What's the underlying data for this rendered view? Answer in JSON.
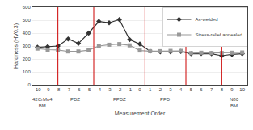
{
  "chart_data": {
    "type": "line",
    "x": [
      -10,
      -9,
      -8,
      -7,
      -6,
      -5,
      -4,
      -3,
      -2,
      -1,
      0,
      1,
      2,
      3,
      4,
      5,
      6,
      7,
      8,
      9,
      10
    ],
    "series": [
      {
        "name": "As-welded",
        "color": "#333333",
        "marker": "diamond",
        "values": [
          290,
          295,
          300,
          355,
          320,
          400,
          490,
          480,
          505,
          350,
          315,
          260,
          255,
          255,
          258,
          240,
          242,
          240,
          225,
          235,
          240
        ]
      },
      {
        "name": "Stress-relief annealed",
        "color": "#999999",
        "marker": "square",
        "values": [
          280,
          272,
          270,
          258,
          258,
          268,
          300,
          310,
          315,
          305,
          265,
          260,
          260,
          262,
          262,
          245,
          248,
          246,
          246,
          248,
          250
        ]
      }
    ],
    "xlabel": "Measurement Order",
    "ylabel": "Hardness (HV0.3)",
    "xlim": [
      -10.5,
      10.5
    ],
    "xticks": [
      -10,
      -9,
      -8,
      -7,
      -6,
      -5,
      -4,
      -3,
      -2,
      -1,
      0,
      1,
      2,
      3,
      4,
      5,
      6,
      7,
      8,
      9,
      10
    ],
    "ylim": [
      0,
      600
    ],
    "yticks": [
      0,
      100,
      200,
      300,
      400,
      500,
      600
    ],
    "grid": "y",
    "legend": "upper right",
    "vlines": {
      "x": [
        -8,
        -4.5,
        0.5,
        4.5,
        8
      ],
      "color": "#cc0000"
    },
    "annotations": [
      {
        "text": "42CrMo4\nBM",
        "x": -9.5
      },
      {
        "text": "PDZ",
        "x": -6.3
      },
      {
        "text": "FPDZ",
        "x": -2.0
      },
      {
        "text": "PFD",
        "x": 2.5
      },
      {
        "text": "N80\nBM",
        "x": 9.2
      }
    ]
  }
}
